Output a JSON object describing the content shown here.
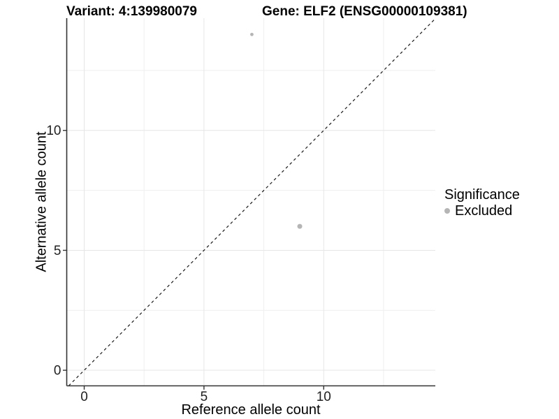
{
  "chart_data": {
    "type": "scatter",
    "title_left": "Variant: 4:139980079",
    "title_right": "Gene: ELF2 (ENSG00000109381)",
    "xlabel": "Reference allele count",
    "ylabel": "Alternative allele count",
    "xlim": [
      -0.73,
      14.66
    ],
    "ylim": [
      -0.65,
      14.68
    ],
    "x_ticks": [
      0,
      5,
      10
    ],
    "y_ticks": [
      0,
      5,
      10
    ],
    "grid_major": [
      0,
      5,
      10
    ],
    "grid_minor": [
      2.5,
      7.5,
      12.5
    ],
    "grid_on": true,
    "reference_line": {
      "type": "identity",
      "equation": "y = x",
      "style": "dashed",
      "color": "#1a1a1a"
    },
    "series": [
      {
        "name": "Excluded",
        "color": "#b5b5b5",
        "points": [
          {
            "x": 7,
            "y": 14,
            "r": 2.4
          },
          {
            "x": 9,
            "y": 6,
            "r": 3.5
          }
        ]
      }
    ],
    "legend": {
      "title": "Significance",
      "position": "right",
      "items": [
        {
          "label": "Excluded",
          "marker": "circle",
          "color": "#b5b5b5"
        }
      ]
    }
  },
  "colors": {
    "background": "#ffffff",
    "grid_major": "#e6e6e6",
    "grid_minor": "#efefef",
    "axis_line": "#333333",
    "tick_mark": "#333333",
    "tick_label": "#1f1f1f",
    "text": "#000000"
  }
}
